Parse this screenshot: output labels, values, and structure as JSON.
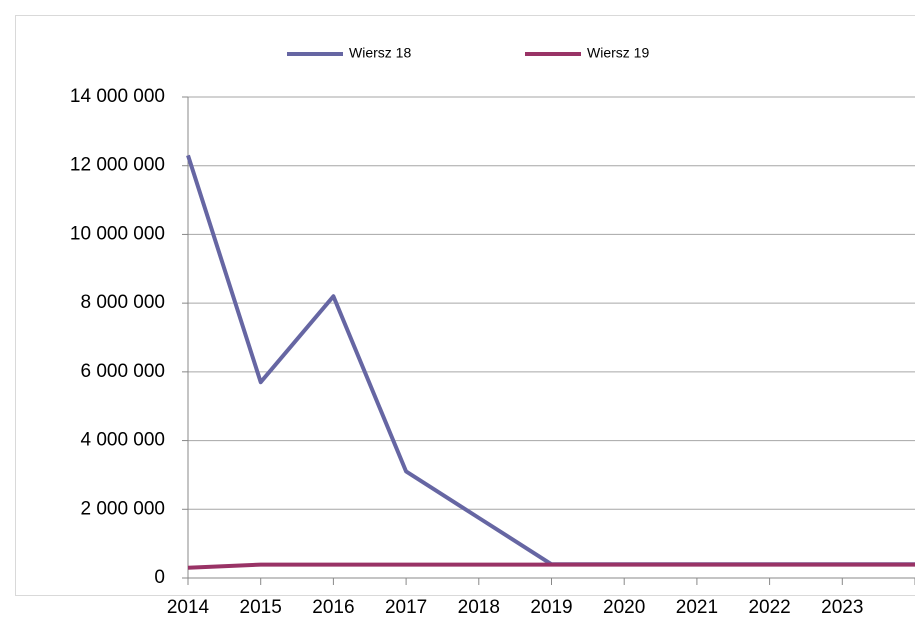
{
  "chart_data": {
    "type": "line",
    "categories": [
      "2014",
      "2015",
      "2016",
      "2017",
      "2018",
      "2019",
      "2020",
      "2021",
      "2022",
      "2023",
      null
    ],
    "series": [
      {
        "name": "Wiersz 18",
        "color": "#6666a3",
        "values": [
          12300000,
          5700000,
          8200000,
          3100000,
          1750000,
          400000,
          400000,
          400000,
          400000,
          400000,
          400000
        ]
      },
      {
        "name": "Wiersz 19",
        "color": "#993366",
        "values": [
          300000,
          390000,
          390000,
          390000,
          390000,
          390000,
          390000,
          390000,
          390000,
          390000,
          390000
        ]
      }
    ],
    "ylim": [
      0,
      14000000
    ],
    "yticks": [
      0,
      {
        "value": 2000000,
        "label": "2 000 000"
      },
      {
        "value": 4000000,
        "label": "4 000 000"
      },
      {
        "value": 6000000,
        "label": "6 000 000"
      },
      {
        "value": 8000000,
        "label": "8 000 000"
      },
      {
        "value": 10000000,
        "label": "10 000 000"
      },
      {
        "value": 12000000,
        "label": "12 000 000"
      },
      {
        "value": 14000000,
        "label": "14 000 000"
      }
    ],
    "grid": true,
    "legend": "top"
  }
}
